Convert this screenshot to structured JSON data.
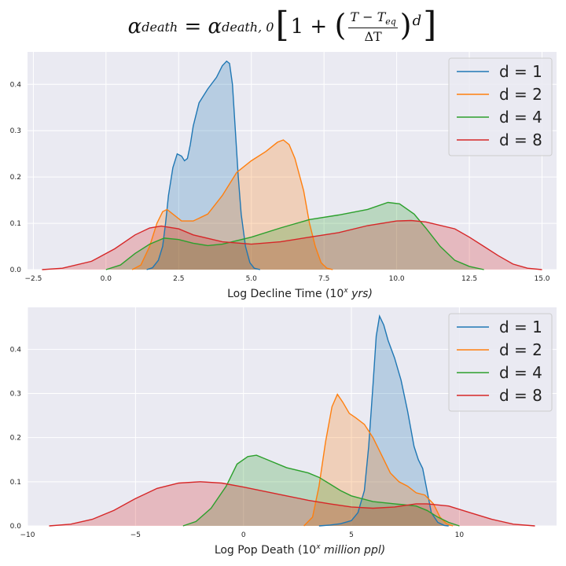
{
  "title": {
    "alpha": "α",
    "lhs_sub": "death",
    "equals": " = ",
    "rhs_sub": "death, 0",
    "one_plus": "1 + ",
    "frac_num_T": "T",
    "frac_num_minus": " − ",
    "frac_num_Teq": "T",
    "frac_num_eq_sub": "eq",
    "frac_den": "ΔT",
    "exponent": "d",
    "open_bracket": "[",
    "close_bracket": "]",
    "open_paren": "(",
    "close_paren": ")"
  },
  "chart_data": [
    {
      "type": "area",
      "xlabel": "Log Decline Time  (10",
      "xlabel_sup": "x",
      "xlabel_unit": " yrs)",
      "xlim": [
        -2.7,
        15.5
      ],
      "ylim": [
        0,
        0.47
      ],
      "xticks": [
        -2.5,
        0.0,
        2.5,
        5.0,
        7.5,
        10.0,
        12.5,
        15.0
      ],
      "xtick_labels": [
        "−2.5",
        "0.0",
        "2.5",
        "5.0",
        "7.5",
        "10.0",
        "12.5",
        "15.0"
      ],
      "yticks": [
        0.0,
        0.1,
        0.2,
        0.3,
        0.4
      ],
      "ytick_labels": [
        "0.0",
        "0.1",
        "0.2",
        "0.3",
        "0.4"
      ],
      "grid": true,
      "legend_position": "top-right",
      "series": [
        {
          "name": "d = 1",
          "color": "#1f77b4",
          "points": [
            [
              1.4,
              0
            ],
            [
              1.6,
              0.004
            ],
            [
              1.8,
              0.02
            ],
            [
              1.95,
              0.05
            ],
            [
              2.05,
              0.1
            ],
            [
              2.15,
              0.16
            ],
            [
              2.3,
              0.22
            ],
            [
              2.45,
              0.25
            ],
            [
              2.6,
              0.245
            ],
            [
              2.7,
              0.235
            ],
            [
              2.8,
              0.24
            ],
            [
              2.9,
              0.27
            ],
            [
              3.0,
              0.31
            ],
            [
              3.2,
              0.36
            ],
            [
              3.5,
              0.39
            ],
            [
              3.8,
              0.415
            ],
            [
              4.0,
              0.44
            ],
            [
              4.15,
              0.45
            ],
            [
              4.25,
              0.445
            ],
            [
              4.35,
              0.4
            ],
            [
              4.45,
              0.3
            ],
            [
              4.55,
              0.2
            ],
            [
              4.65,
              0.12
            ],
            [
              4.8,
              0.05
            ],
            [
              4.95,
              0.015
            ],
            [
              5.1,
              0.003
            ],
            [
              5.3,
              0
            ]
          ]
        },
        {
          "name": "d = 2",
          "color": "#ff7f0e",
          "points": [
            [
              0.9,
              0
            ],
            [
              1.2,
              0.01
            ],
            [
              1.5,
              0.05
            ],
            [
              1.75,
              0.1
            ],
            [
              1.95,
              0.125
            ],
            [
              2.1,
              0.13
            ],
            [
              2.3,
              0.12
            ],
            [
              2.6,
              0.105
            ],
            [
              3.0,
              0.105
            ],
            [
              3.5,
              0.12
            ],
            [
              4.0,
              0.16
            ],
            [
              4.5,
              0.21
            ],
            [
              5.0,
              0.235
            ],
            [
              5.5,
              0.255
            ],
            [
              5.9,
              0.275
            ],
            [
              6.1,
              0.28
            ],
            [
              6.3,
              0.27
            ],
            [
              6.5,
              0.24
            ],
            [
              6.8,
              0.17
            ],
            [
              7.0,
              0.1
            ],
            [
              7.2,
              0.05
            ],
            [
              7.4,
              0.015
            ],
            [
              7.6,
              0.003
            ],
            [
              7.8,
              0
            ]
          ]
        },
        {
          "name": "d = 4",
          "color": "#2ca02c",
          "points": [
            [
              0,
              0
            ],
            [
              0.5,
              0.01
            ],
            [
              1.0,
              0.035
            ],
            [
              1.5,
              0.055
            ],
            [
              2.0,
              0.068
            ],
            [
              2.5,
              0.065
            ],
            [
              3.0,
              0.057
            ],
            [
              3.5,
              0.052
            ],
            [
              4.0,
              0.055
            ],
            [
              5.0,
              0.07
            ],
            [
              6.0,
              0.09
            ],
            [
              7.0,
              0.108
            ],
            [
              8.0,
              0.118
            ],
            [
              9.0,
              0.13
            ],
            [
              9.7,
              0.145
            ],
            [
              10.1,
              0.142
            ],
            [
              10.6,
              0.12
            ],
            [
              11.0,
              0.09
            ],
            [
              11.5,
              0.05
            ],
            [
              12.0,
              0.02
            ],
            [
              12.5,
              0.007
            ],
            [
              13.0,
              0
            ]
          ]
        },
        {
          "name": "d = 8",
          "color": "#d62728",
          "points": [
            [
              -2.2,
              0
            ],
            [
              -1.5,
              0.003
            ],
            [
              -0.5,
              0.018
            ],
            [
              0.3,
              0.045
            ],
            [
              1.0,
              0.075
            ],
            [
              1.5,
              0.09
            ],
            [
              1.9,
              0.094
            ],
            [
              2.5,
              0.088
            ],
            [
              3.0,
              0.075
            ],
            [
              4.0,
              0.06
            ],
            [
              5.0,
              0.055
            ],
            [
              6.0,
              0.06
            ],
            [
              7.0,
              0.07
            ],
            [
              8.0,
              0.08
            ],
            [
              9.0,
              0.095
            ],
            [
              10.0,
              0.105
            ],
            [
              10.5,
              0.106
            ],
            [
              11.0,
              0.103
            ],
            [
              12.0,
              0.088
            ],
            [
              12.5,
              0.07
            ],
            [
              13.0,
              0.05
            ],
            [
              13.5,
              0.03
            ],
            [
              14.0,
              0.012
            ],
            [
              14.5,
              0.003
            ],
            [
              15.0,
              0
            ]
          ]
        }
      ]
    },
    {
      "type": "area",
      "xlabel": "Log Pop Death  (10",
      "xlabel_sup": "x",
      "xlabel_unit": " million ppl)",
      "xlim": [
        -10,
        14.5
      ],
      "ylim": [
        0,
        0.495
      ],
      "xticks": [
        -10,
        -5,
        0,
        5,
        10
      ],
      "xtick_labels": [
        "−10",
        "−5",
        "0",
        "5",
        "10"
      ],
      "yticks": [
        0.0,
        0.1,
        0.2,
        0.3,
        0.4
      ],
      "ytick_labels": [
        "0.0",
        "0.1",
        "0.2",
        "0.3",
        "0.4"
      ],
      "grid": true,
      "legend_position": "top-right",
      "series": [
        {
          "name": "d = 1",
          "color": "#1f77b4",
          "points": [
            [
              3.5,
              0
            ],
            [
              4.0,
              0.002
            ],
            [
              4.5,
              0.005
            ],
            [
              5.0,
              0.012
            ],
            [
              5.3,
              0.03
            ],
            [
              5.6,
              0.08
            ],
            [
              5.8,
              0.18
            ],
            [
              6.0,
              0.32
            ],
            [
              6.15,
              0.43
            ],
            [
              6.3,
              0.475
            ],
            [
              6.5,
              0.455
            ],
            [
              6.7,
              0.42
            ],
            [
              7.0,
              0.38
            ],
            [
              7.3,
              0.33
            ],
            [
              7.6,
              0.26
            ],
            [
              7.9,
              0.18
            ],
            [
              8.1,
              0.15
            ],
            [
              8.3,
              0.13
            ],
            [
              8.5,
              0.08
            ],
            [
              8.7,
              0.03
            ],
            [
              9.0,
              0.008
            ],
            [
              9.3,
              0.001
            ],
            [
              9.5,
              0
            ]
          ]
        },
        {
          "name": "d = 2",
          "color": "#ff7f0e",
          "points": [
            [
              2.8,
              0
            ],
            [
              3.2,
              0.02
            ],
            [
              3.5,
              0.09
            ],
            [
              3.8,
              0.19
            ],
            [
              4.1,
              0.27
            ],
            [
              4.35,
              0.298
            ],
            [
              4.6,
              0.28
            ],
            [
              4.9,
              0.255
            ],
            [
              5.2,
              0.245
            ],
            [
              5.6,
              0.23
            ],
            [
              6.0,
              0.2
            ],
            [
              6.4,
              0.16
            ],
            [
              6.8,
              0.12
            ],
            [
              7.2,
              0.1
            ],
            [
              7.6,
              0.09
            ],
            [
              8.0,
              0.075
            ],
            [
              8.4,
              0.07
            ],
            [
              8.8,
              0.05
            ],
            [
              9.1,
              0.02
            ],
            [
              9.4,
              0.005
            ],
            [
              9.7,
              0
            ]
          ]
        },
        {
          "name": "d = 4",
          "color": "#2ca02c",
          "points": [
            [
              -2.8,
              0
            ],
            [
              -2.2,
              0.01
            ],
            [
              -1.5,
              0.04
            ],
            [
              -0.8,
              0.09
            ],
            [
              -0.3,
              0.14
            ],
            [
              0.2,
              0.157
            ],
            [
              0.6,
              0.16
            ],
            [
              1.0,
              0.152
            ],
            [
              2.0,
              0.132
            ],
            [
              3.0,
              0.12
            ],
            [
              3.5,
              0.11
            ],
            [
              4.0,
              0.095
            ],
            [
              4.5,
              0.08
            ],
            [
              5.0,
              0.068
            ],
            [
              6.0,
              0.055
            ],
            [
              7.0,
              0.05
            ],
            [
              8.0,
              0.045
            ],
            [
              8.5,
              0.035
            ],
            [
              9.0,
              0.02
            ],
            [
              9.5,
              0.008
            ],
            [
              10.0,
              0
            ]
          ]
        },
        {
          "name": "d = 8",
          "color": "#d62728",
          "points": [
            [
              -9,
              0
            ],
            [
              -8,
              0.004
            ],
            [
              -7,
              0.015
            ],
            [
              -6,
              0.035
            ],
            [
              -5,
              0.062
            ],
            [
              -4,
              0.085
            ],
            [
              -3,
              0.097
            ],
            [
              -2,
              0.1
            ],
            [
              -1,
              0.097
            ],
            [
              0,
              0.088
            ],
            [
              1,
              0.078
            ],
            [
              2,
              0.068
            ],
            [
              3,
              0.058
            ],
            [
              4,
              0.05
            ],
            [
              5,
              0.043
            ],
            [
              6,
              0.04
            ],
            [
              7,
              0.043
            ],
            [
              8,
              0.05
            ],
            [
              8.5,
              0.05
            ],
            [
              9.5,
              0.045
            ],
            [
              10.5,
              0.03
            ],
            [
              11.5,
              0.015
            ],
            [
              12.5,
              0.004
            ],
            [
              13.5,
              0
            ]
          ]
        }
      ]
    }
  ]
}
